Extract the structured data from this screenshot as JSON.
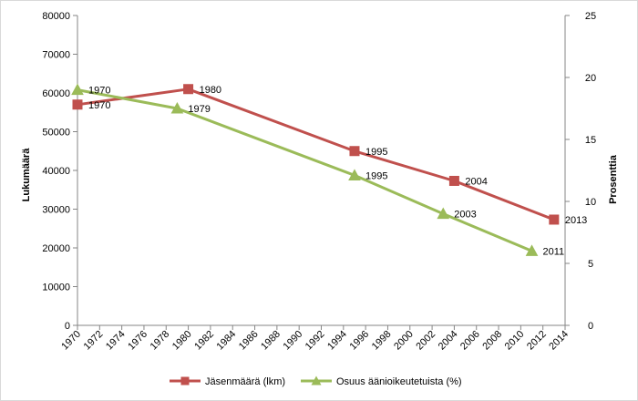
{
  "chart_data": {
    "type": "line",
    "title": "",
    "xlabel": "",
    "x_ticks": [
      "1970",
      "1972",
      "1974",
      "1976",
      "1978",
      "1980",
      "1982",
      "1984",
      "1986",
      "1988",
      "1990",
      "1992",
      "1994",
      "1996",
      "1998",
      "2000",
      "2002",
      "2004",
      "2006",
      "2008",
      "2010",
      "2012",
      "2014"
    ],
    "xlim": [
      1970,
      2014
    ],
    "y_left": {
      "label": "Lukumäärä",
      "lim": [
        0,
        80000
      ],
      "ticks": [
        "0",
        "10000",
        "20000",
        "30000",
        "40000",
        "50000",
        "60000",
        "70000",
        "80000"
      ]
    },
    "y_right": {
      "label": "Prosenttia",
      "lim": [
        0,
        25
      ],
      "ticks": [
        "0",
        "5",
        "10",
        "15",
        "20",
        "25"
      ]
    },
    "grid": false,
    "legend_position": "bottom",
    "series": [
      {
        "name": "Jäsenmäärä (lkm)",
        "axis": "left",
        "color": "#c0504d",
        "marker": "square",
        "points": [
          {
            "x": 1970,
            "y": 57000,
            "label": "1970"
          },
          {
            "x": 1980,
            "y": 61000,
            "label": "1980"
          },
          {
            "x": 1995,
            "y": 45000,
            "label": "1995"
          },
          {
            "x": 2004,
            "y": 37300,
            "label": "2004"
          },
          {
            "x": 2013,
            "y": 27300,
            "label": "2013"
          }
        ]
      },
      {
        "name": "Osuus äänioikeutetuista (%)",
        "axis": "right",
        "color": "#9bbb59",
        "marker": "triangle",
        "points": [
          {
            "x": 1970,
            "y": 19.0,
            "label": "1970"
          },
          {
            "x": 1979,
            "y": 17.5,
            "label": "1979"
          },
          {
            "x": 1995,
            "y": 12.1,
            "label": "1995"
          },
          {
            "x": 2003,
            "y": 9.0,
            "label": "2003"
          },
          {
            "x": 2011,
            "y": 6.0,
            "label": "2011"
          }
        ]
      }
    ]
  }
}
